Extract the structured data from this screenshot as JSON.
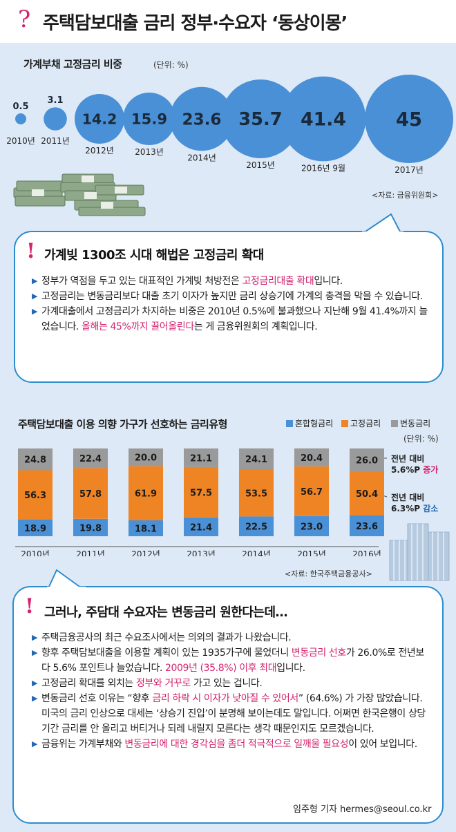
{
  "header": {
    "question_mark": "?",
    "title": "주택담보대출 금리 정부·수요자 ‘동상이몽’"
  },
  "section1": {
    "title": "가계부채 고정금리 비중",
    "unit": "(단위: %)",
    "source": "<자료: 금융위원회>"
  },
  "callout1": {
    "mark": "!",
    "heading": "가계빚 1300조 시대 해법은 고정금리 확대",
    "paragraphs": [
      [
        {
          "t": "정부가 역점을 두고 있는 대표적인 가계빚 처방전은 "
        },
        {
          "t": "고정금리대출 확대",
          "hl": true
        },
        {
          "t": "입니다."
        }
      ],
      [
        {
          "t": "고정금리는 변동금리보다 대출 초기 이자가 높지만 금리 상승기에 가계의 충격을 막을 수 있습니다."
        }
      ],
      [
        {
          "t": "가계대출에서 고정금리가 차지하는 비중은 2010년 0.5%에 불과했으나 지난해 9월 41.4%까지 늘었습니다. "
        },
        {
          "t": "올해는 45%까지 끌어올린다",
          "hl": true
        },
        {
          "t": "는 게 금융위원회의 계획입니다."
        }
      ]
    ]
  },
  "section2": {
    "title": "주택담보대출 이용 의향 가구가 선호하는 금리유형",
    "unit": "(단위: %)",
    "source": "<자료: 한국주택금융공사>",
    "legend": [
      {
        "label": "혼합형금리",
        "color": "#4a90d6"
      },
      {
        "label": "고정금리",
        "color": "#ef8424"
      },
      {
        "label": "변동금리",
        "color": "#9a9a9a"
      }
    ],
    "note_up": {
      "line1": "전년 대비",
      "line2_value": "5.6%P",
      "line2_word": "증가"
    },
    "note_down": {
      "line1": "전년 대비",
      "line2_value": "6.3%P",
      "line2_word": "감소"
    }
  },
  "callout2": {
    "mark": "!",
    "heading": "그러나, 주담대 수요자는 변동금리 원한다는데…",
    "paragraphs": [
      [
        {
          "t": "주택금융공사의 최근 수요조사에서는 의외의 결과가 나왔습니다."
        }
      ],
      [
        {
          "t": "향후 주택담보대출을 이용할 계획이 있는 1935가구에 물었더니 "
        },
        {
          "t": "변동금리 선호",
          "hl": true
        },
        {
          "t": "가 26.0%로 전년보다 5.6% 포인트나 늘었습니다. "
        },
        {
          "t": "2009년 (35.8%) 이후 최대",
          "hl": true
        },
        {
          "t": "입니다."
        }
      ],
      [
        {
          "t": "고정금리 확대를 외치는 "
        },
        {
          "t": "정부와 거꾸로",
          "hl": true
        },
        {
          "t": " 가고 있는 겁니다."
        }
      ],
      [
        {
          "t": "변동금리 선호 이유는 “향후 "
        },
        {
          "t": "금리 하락 시 이자가 낮아질 수 있어서",
          "hl": true
        },
        {
          "t": "” (64.6%) 가 가장 많았습니다. 미국의 금리 인상으로 대세는 ‘상승기 진입’이 분명해 보이는데도 말입니다. 어쩌면 한국은행이 상당 기간 금리를 안 올리고 버티거나 되레 내릴지 모른다는 생각 때문인지도 모르겠습니다."
        }
      ],
      [
        {
          "t": "금융위는 가계부채와 "
        },
        {
          "t": "변동금리에 대한 경각심을 좀더 적극적으로 일깨울 필요성",
          "hl": true
        },
        {
          "t": "이 있어 보입니다."
        }
      ]
    ],
    "byline": "임주형 기자 hermes@seoul.co.kr"
  },
  "chart_data": [
    {
      "type": "bubble",
      "title": "가계부채 고정금리 비중",
      "categories": [
        "2010년",
        "2011년",
        "2012년",
        "2013년",
        "2014년",
        "2015년",
        "2016년 9월",
        "2017년"
      ],
      "values": [
        0.5,
        3.1,
        14.2,
        15.9,
        23.6,
        35.7,
        41.4,
        45
      ],
      "color": "#4a90d6"
    },
    {
      "type": "bar",
      "stacked": true,
      "title": "주택담보대출 이용 의향 가구가 선호하는 금리유형",
      "categories": [
        "2010년",
        "2011년",
        "2012년",
        "2013년",
        "2014년",
        "2015년",
        "2016년"
      ],
      "series": [
        {
          "name": "혼합형금리",
          "color": "#4a90d6",
          "values": [
            18.9,
            19.8,
            18.1,
            21.4,
            22.5,
            23.0,
            23.6
          ]
        },
        {
          "name": "고정금리",
          "color": "#ef8424",
          "values": [
            56.3,
            57.8,
            61.9,
            57.5,
            53.5,
            56.7,
            50.4
          ]
        },
        {
          "name": "변동금리",
          "color": "#9a9a9a",
          "values": [
            24.8,
            22.4,
            20.0,
            21.1,
            24.1,
            20.4,
            26.0
          ]
        }
      ],
      "value_labels": [
        [
          "18.9",
          "19.8",
          "18.1",
          "21.4",
          "22.5",
          "23.0",
          "23.6"
        ],
        [
          "56.3",
          "57.8",
          "61.9",
          "57.5",
          "53.5",
          "56.7",
          "50.4"
        ],
        [
          "24.8",
          "22.4",
          "20.0",
          "21.1",
          "24.1",
          "20.4",
          "26.0"
        ]
      ]
    }
  ]
}
